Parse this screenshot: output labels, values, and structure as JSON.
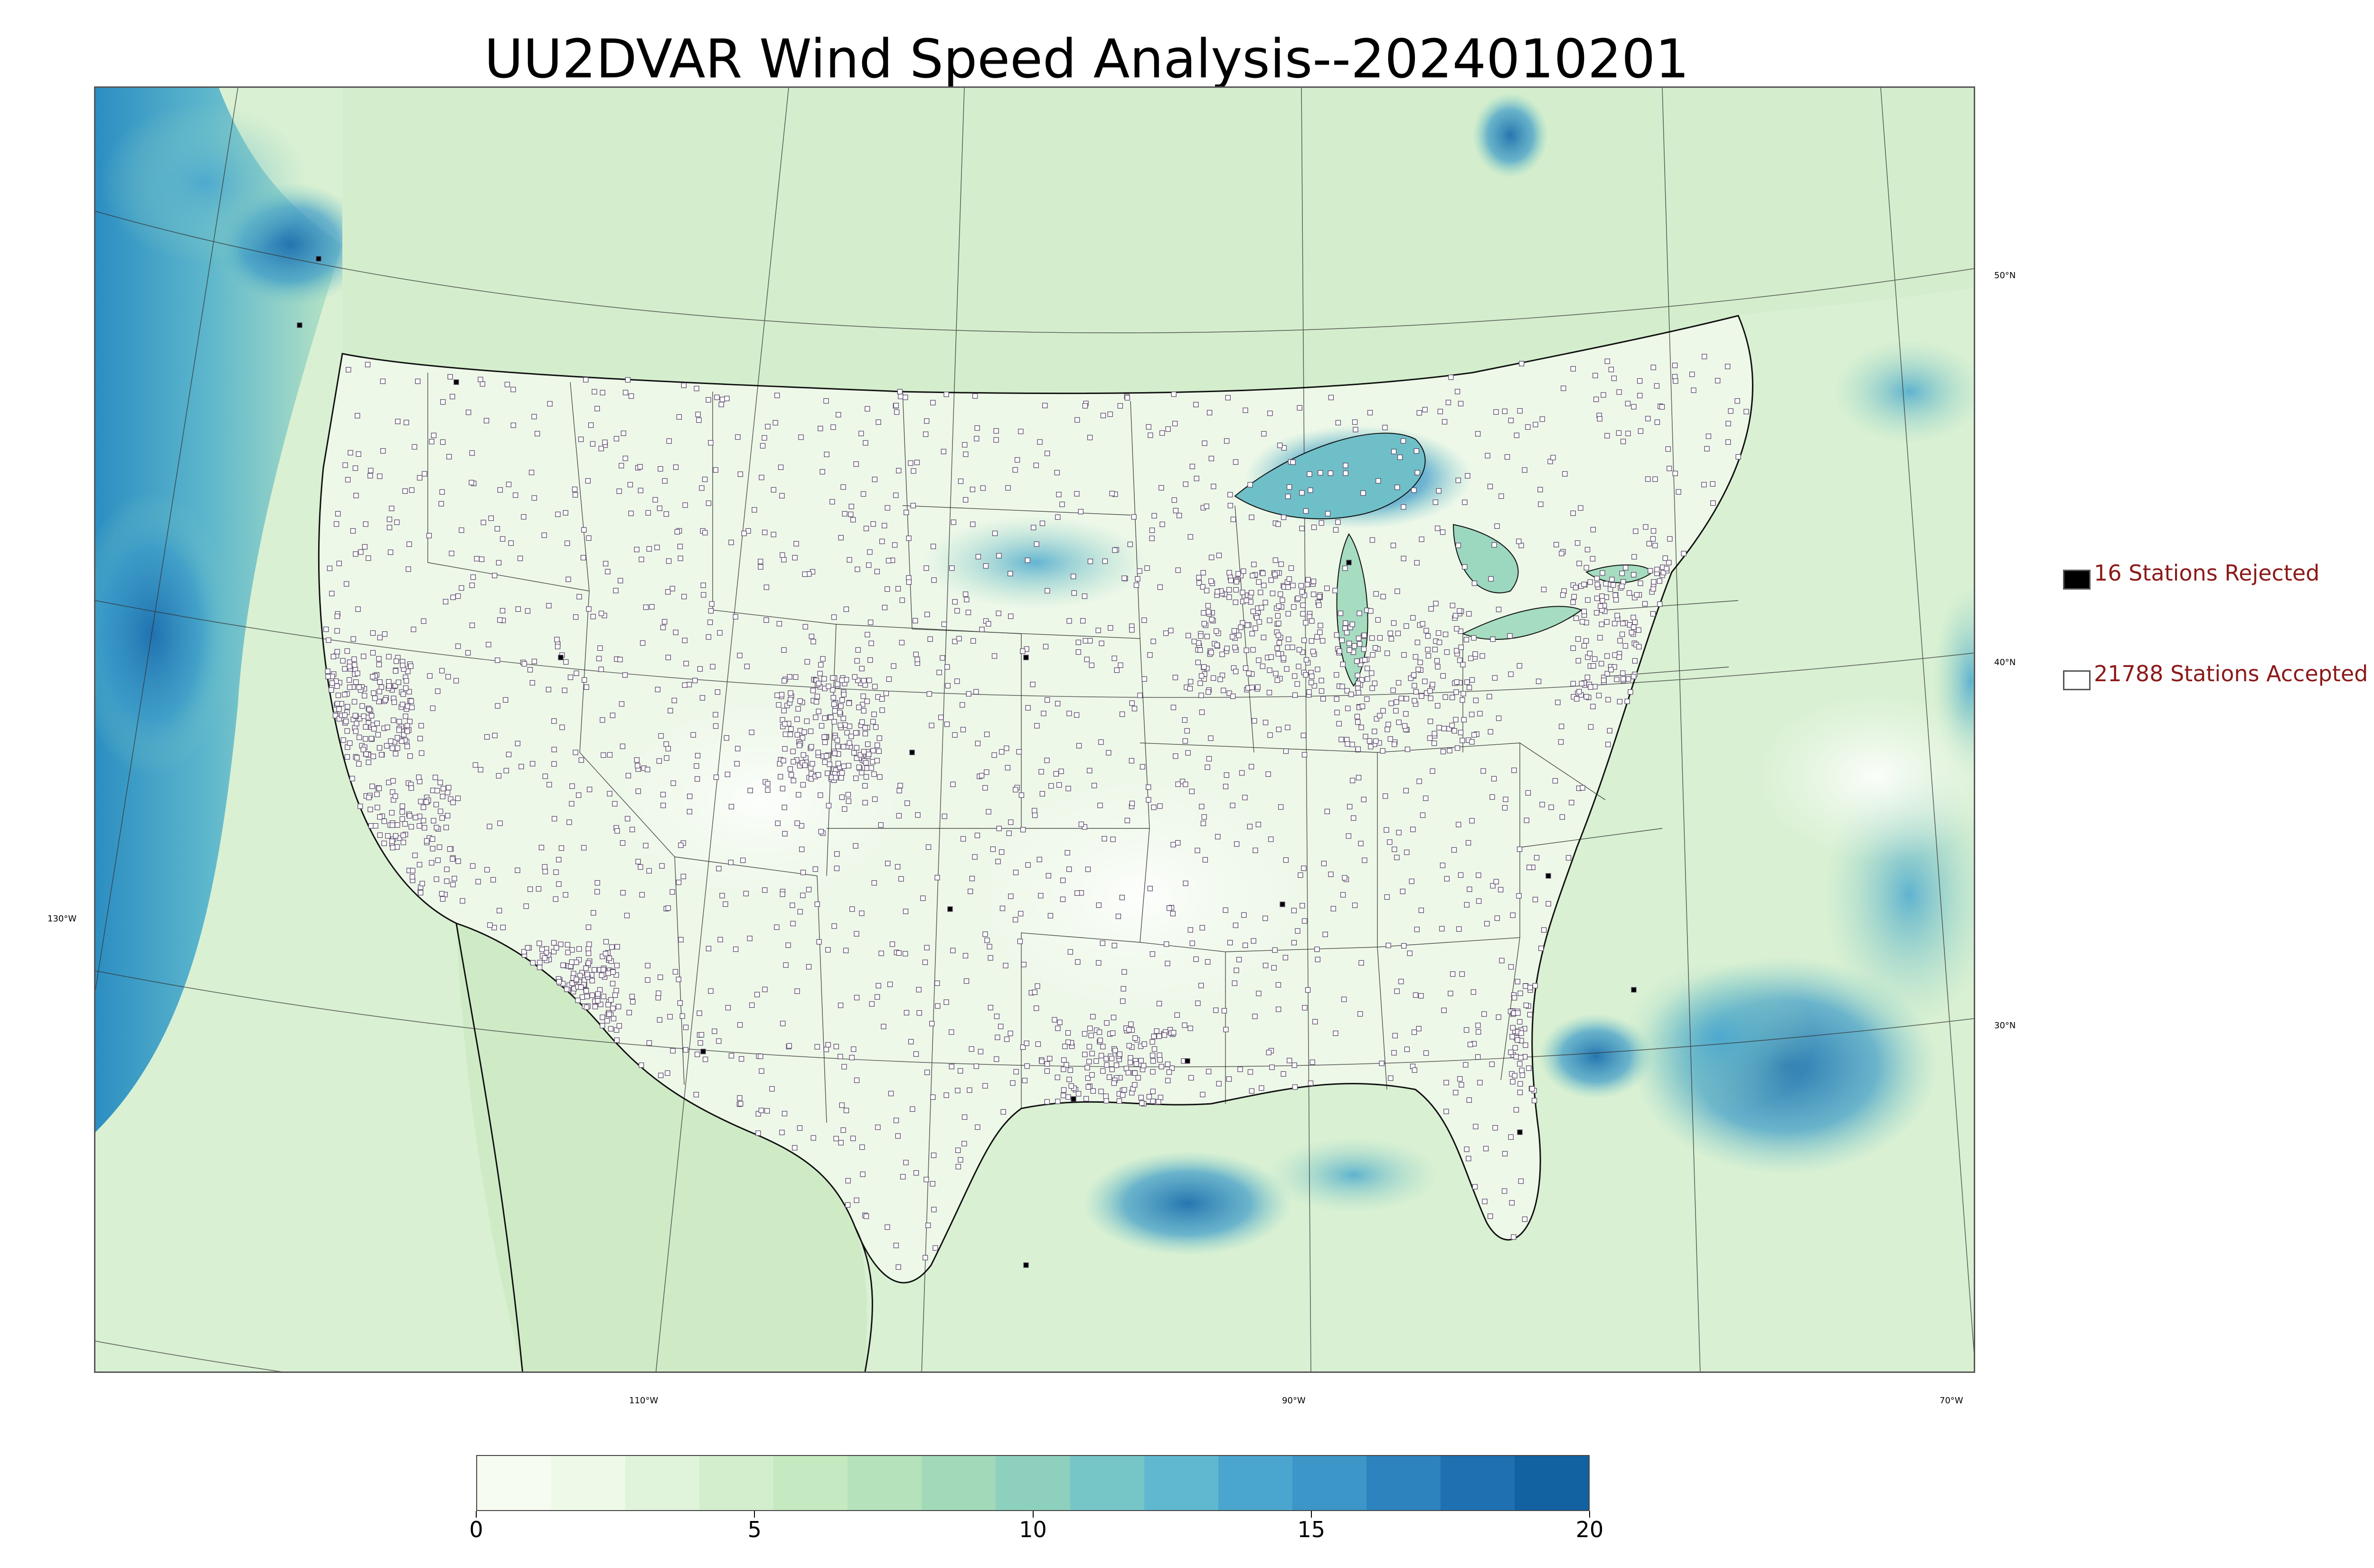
{
  "title": "UU2DVAR Wind Speed Analysis--2024010201",
  "map": {
    "longitude_labels": [
      "110°W",
      "90°W",
      "70°W"
    ],
    "latitude_labels_right": [
      "50°N",
      "40°N",
      "30°N"
    ],
    "latitude_label_left": "130°W",
    "colors": {
      "land_base": "#e3f3dd",
      "ocean_calm": "#c7e9c0",
      "strong_wind": "#2b8cbe",
      "station_accepted": "#ffffff",
      "station_rejected": "#000000",
      "boundary": "#000000"
    }
  },
  "legend": {
    "rejected": {
      "count_label": "16 Stations Rejected",
      "count": 16,
      "swatch_color": "#000000"
    },
    "accepted": {
      "count_label": "21788 Stations Accepted",
      "count": 21788,
      "swatch_color": "#ffffff"
    }
  },
  "colorbar": {
    "min": 0,
    "max": 20,
    "ticks": [
      "0",
      "5",
      "10",
      "15",
      "20"
    ],
    "colors": [
      "#f7fcf0",
      "#eef9e8",
      "#e0f3db",
      "#d3eecd",
      "#c5e9c0",
      "#b5e2ba",
      "#a2d9b9",
      "#8ed0be",
      "#76c6c7",
      "#5fb8cf",
      "#4aa6cf",
      "#3c96c8",
      "#2d83bd",
      "#1f70b0",
      "#1262a2"
    ]
  }
}
